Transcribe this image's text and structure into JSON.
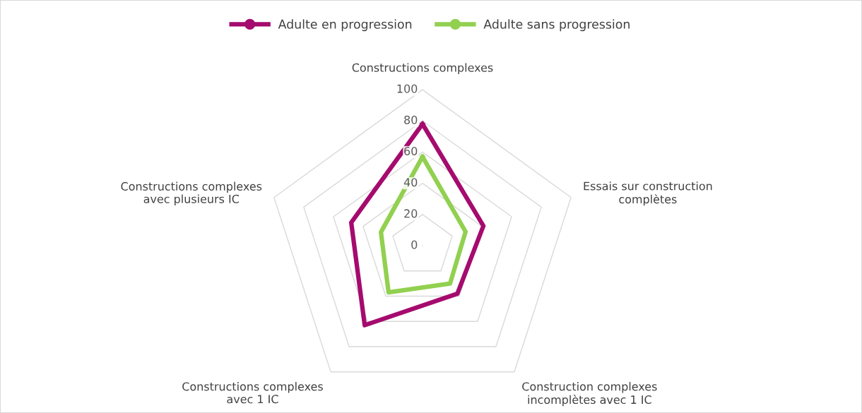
{
  "chart_data": {
    "type": "radar",
    "categories": [
      "Constructions complexes",
      "Essais sur construction\ncomplètes",
      "Construction complexes\nincomplètes avec 1 IC",
      "Constructions complexes\navec 1 IC",
      "Constructions complexes\navec plusieurs IC"
    ],
    "series": [
      {
        "name": "Adulte en progression",
        "color": "#a50b6e",
        "values": [
          78,
          41,
          38,
          63,
          48
        ]
      },
      {
        "name": "Adulte sans progression",
        "color": "#92d050",
        "values": [
          57,
          29,
          30,
          37,
          28
        ]
      }
    ],
    "ylim": [
      0,
      100
    ],
    "yticks": [
      0,
      20,
      40,
      60,
      80,
      100
    ],
    "grid": true,
    "legend": "top"
  }
}
